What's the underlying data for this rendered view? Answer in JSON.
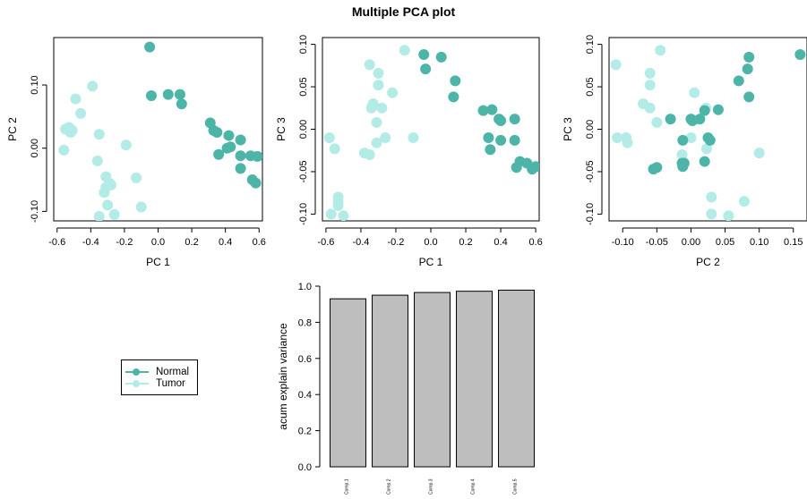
{
  "title": "Multiple PCA plot",
  "colors": {
    "Normal": "#4db5a8",
    "Tumor": "#b3ebe7",
    "bar": "#bebebe"
  },
  "legend": {
    "items": [
      {
        "label": "Normal"
      },
      {
        "label": "Tumor"
      }
    ],
    "placement": "middle-left"
  },
  "chart_data": [
    {
      "type": "scatter",
      "xlabel": "PC 1",
      "ylabel": "PC 2",
      "xlim": [
        -0.62,
        0.62
      ],
      "ylim": [
        -0.115,
        0.175
      ],
      "xticks": [
        "-0.6",
        "-0.4",
        "-0.2",
        "0.0",
        "0.2",
        "0.4",
        "0.6"
      ],
      "yticks": [
        "-0.10",
        "0.00",
        "0.10"
      ],
      "series": [
        {
          "name": "Normal",
          "points": [
            [
              -0.05,
              0.16
            ],
            [
              -0.04,
              0.083
            ],
            [
              0.06,
              0.085
            ],
            [
              0.13,
              0.085
            ],
            [
              0.14,
              0.07
            ],
            [
              0.31,
              0.04
            ],
            [
              0.33,
              0.028
            ],
            [
              0.35,
              0.025
            ],
            [
              0.42,
              0.02
            ],
            [
              0.49,
              0.013
            ],
            [
              0.36,
              -0.01
            ],
            [
              0.41,
              0.0
            ],
            [
              0.43,
              0.002
            ],
            [
              0.49,
              -0.012
            ],
            [
              0.55,
              -0.012
            ],
            [
              0.59,
              -0.013
            ],
            [
              0.49,
              -0.032
            ],
            [
              0.56,
              -0.05
            ],
            [
              0.58,
              -0.055
            ]
          ]
        },
        {
          "name": "Tumor",
          "points": [
            [
              -0.39,
              0.098
            ],
            [
              -0.49,
              0.078
            ],
            [
              -0.46,
              0.055
            ],
            [
              -0.53,
              0.033
            ],
            [
              -0.55,
              0.03
            ],
            [
              -0.51,
              0.028
            ],
            [
              -0.52,
              0.025
            ],
            [
              -0.56,
              -0.003
            ],
            [
              -0.35,
              0.022
            ],
            [
              -0.19,
              0.005
            ],
            [
              -0.36,
              -0.02
            ],
            [
              -0.31,
              -0.045
            ],
            [
              -0.29,
              -0.055
            ],
            [
              -0.28,
              -0.058
            ],
            [
              -0.13,
              -0.047
            ],
            [
              -0.31,
              -0.062
            ],
            [
              -0.32,
              -0.07
            ],
            [
              -0.3,
              -0.09
            ],
            [
              -0.1,
              -0.093
            ],
            [
              -0.35,
              -0.108
            ],
            [
              -0.26,
              -0.105
            ]
          ]
        }
      ]
    },
    {
      "type": "scatter",
      "xlabel": "PC 1",
      "ylabel": "PC 3",
      "xlim": [
        -0.62,
        0.62
      ],
      "ylim": [
        -0.108,
        0.108
      ],
      "xticks": [
        "-0.6",
        "-0.4",
        "-0.2",
        "0.0",
        "0.2",
        "0.4",
        "0.6"
      ],
      "yticks": [
        "-0.10",
        "-0.05",
        "0.00",
        "0.05",
        "0.10"
      ],
      "series": [
        {
          "name": "Normal",
          "points": [
            [
              -0.04,
              0.088
            ],
            [
              0.06,
              0.085
            ],
            [
              -0.03,
              0.071
            ],
            [
              0.14,
              0.057
            ],
            [
              0.13,
              0.038
            ],
            [
              0.3,
              0.022
            ],
            [
              0.35,
              0.023
            ],
            [
              0.39,
              0.012
            ],
            [
              0.4,
              0.01
            ],
            [
              0.48,
              0.012
            ],
            [
              0.33,
              -0.01
            ],
            [
              0.4,
              -0.013
            ],
            [
              0.48,
              -0.013
            ],
            [
              0.34,
              -0.024
            ],
            [
              0.51,
              -0.038
            ],
            [
              0.55,
              -0.04
            ],
            [
              0.49,
              -0.045
            ],
            [
              0.6,
              -0.044
            ],
            [
              0.58,
              -0.047
            ]
          ]
        },
        {
          "name": "Tumor",
          "points": [
            [
              -0.15,
              0.093
            ],
            [
              -0.35,
              0.076
            ],
            [
              -0.3,
              0.066
            ],
            [
              -0.3,
              0.052
            ],
            [
              -0.22,
              0.043
            ],
            [
              -0.33,
              0.03
            ],
            [
              -0.34,
              0.025
            ],
            [
              -0.28,
              0.025
            ],
            [
              -0.31,
              0.008
            ],
            [
              -0.26,
              -0.01
            ],
            [
              -0.31,
              -0.016
            ],
            [
              -0.1,
              -0.01
            ],
            [
              -0.58,
              -0.01
            ],
            [
              -0.55,
              -0.023
            ],
            [
              -0.38,
              -0.028
            ],
            [
              -0.35,
              -0.03
            ],
            [
              -0.53,
              -0.08
            ],
            [
              -0.53,
              -0.085
            ],
            [
              -0.53,
              -0.09
            ],
            [
              -0.57,
              -0.1
            ],
            [
              -0.5,
              -0.102
            ]
          ]
        }
      ]
    },
    {
      "type": "scatter",
      "xlabel": "PC 2",
      "ylabel": "PC 3",
      "xlim": [
        -0.12,
        0.17
      ],
      "ylim": [
        -0.108,
        0.108
      ],
      "xticks": [
        "-0.10",
        "-0.05",
        "0.00",
        "0.05",
        "0.10",
        "0.15"
      ],
      "yticks": [
        "-0.10",
        "-0.05",
        "0.00",
        "0.05",
        "0.10"
      ],
      "series": [
        {
          "name": "Normal",
          "points": [
            [
              0.16,
              0.088
            ],
            [
              0.085,
              0.085
            ],
            [
              0.083,
              0.071
            ],
            [
              0.07,
              0.057
            ],
            [
              0.085,
              0.038
            ],
            [
              0.02,
              0.022
            ],
            [
              0.04,
              0.023
            ],
            [
              0.0,
              0.012
            ],
            [
              0.002,
              0.01
            ],
            [
              0.013,
              0.012
            ],
            [
              -0.03,
              0.012
            ],
            [
              0.025,
              -0.01
            ],
            [
              0.028,
              -0.013
            ],
            [
              -0.012,
              -0.013
            ],
            [
              -0.05,
              -0.045
            ],
            [
              -0.013,
              -0.04
            ],
            [
              -0.055,
              -0.047
            ],
            [
              -0.012,
              -0.044
            ],
            [
              -0.01,
              -0.04
            ],
            [
              0.02,
              -0.038
            ]
          ]
        },
        {
          "name": "Tumor",
          "points": [
            [
              -0.11,
              0.076
            ],
            [
              -0.045,
              0.093
            ],
            [
              -0.06,
              0.066
            ],
            [
              -0.06,
              0.052
            ],
            [
              -0.07,
              0.03
            ],
            [
              -0.06,
              0.025
            ],
            [
              -0.05,
              0.008
            ],
            [
              0.005,
              0.043
            ],
            [
              0.022,
              0.025
            ],
            [
              -0.013,
              -0.03
            ],
            [
              -0.108,
              -0.01
            ],
            [
              -0.095,
              -0.01
            ],
            [
              -0.093,
              -0.016
            ],
            [
              0.0,
              -0.01
            ],
            [
              0.023,
              -0.023
            ],
            [
              0.1,
              -0.028
            ],
            [
              0.03,
              -0.08
            ],
            [
              0.078,
              -0.085
            ],
            [
              0.03,
              -0.1
            ],
            [
              0.055,
              -0.102
            ]
          ]
        }
      ]
    },
    {
      "type": "bar",
      "ylabel": "acum explain variance",
      "ylim": [
        0,
        1.0
      ],
      "yticks": [
        "0.0",
        "0.2",
        "0.4",
        "0.6",
        "0.8",
        "1.0"
      ],
      "categories": [
        "Comp.1",
        "Comp.2",
        "Comp.3",
        "Comp.4",
        "Comp.5"
      ],
      "values": [
        0.93,
        0.95,
        0.965,
        0.972,
        0.978
      ]
    }
  ]
}
